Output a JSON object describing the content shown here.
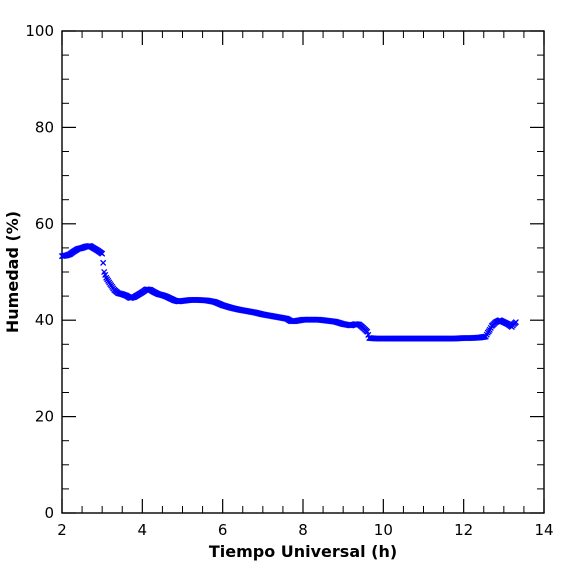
{
  "chart_data": {
    "type": "scatter",
    "title": "",
    "xlabel": "Tiempo Universal (h)",
    "ylabel": "Humedad (%)",
    "xlim": [
      2,
      14
    ],
    "ylim": [
      0,
      100
    ],
    "x_ticks": [
      2,
      4,
      6,
      8,
      10,
      12,
      14
    ],
    "y_ticks": [
      0,
      20,
      40,
      60,
      80,
      100
    ],
    "x_tick_labels": [
      "2",
      "4",
      "6",
      "8",
      "10",
      "12",
      "14"
    ],
    "y_tick_labels": [
      "0",
      "20",
      "40",
      "60",
      "80",
      "100"
    ],
    "grid": false,
    "legend": "none",
    "marker": "x",
    "color": "#0000ff",
    "series": [
      {
        "points": [
          [
            2.0,
            53.3
          ],
          [
            2.1,
            53.4
          ],
          [
            2.2,
            53.7
          ],
          [
            2.3,
            54.3
          ],
          [
            2.4,
            54.8
          ],
          [
            2.5,
            55.0
          ],
          [
            2.6,
            55.3
          ],
          [
            2.7,
            55.4
          ],
          [
            2.8,
            54.9
          ],
          [
            2.9,
            54.4
          ],
          [
            3.0,
            53.8
          ],
          [
            3.05,
            50.0
          ],
          [
            3.1,
            48.8
          ],
          [
            3.2,
            47.5
          ],
          [
            3.3,
            46.3
          ],
          [
            3.4,
            45.6
          ],
          [
            3.5,
            45.4
          ],
          [
            3.6,
            45.1
          ],
          [
            3.7,
            44.6
          ],
          [
            3.8,
            44.8
          ],
          [
            3.9,
            45.3
          ],
          [
            4.0,
            45.8
          ],
          [
            4.1,
            46.4
          ],
          [
            4.2,
            46.3
          ],
          [
            4.3,
            45.8
          ],
          [
            4.4,
            45.4
          ],
          [
            4.5,
            45.2
          ],
          [
            4.6,
            44.9
          ],
          [
            4.7,
            44.5
          ],
          [
            4.8,
            44.1
          ],
          [
            4.9,
            43.9
          ],
          [
            5.0,
            44.0
          ],
          [
            5.2,
            44.2
          ],
          [
            5.4,
            44.2
          ],
          [
            5.6,
            44.1
          ],
          [
            5.8,
            43.8
          ],
          [
            6.0,
            43.1
          ],
          [
            6.2,
            42.6
          ],
          [
            6.4,
            42.2
          ],
          [
            6.6,
            41.9
          ],
          [
            6.8,
            41.6
          ],
          [
            7.0,
            41.2
          ],
          [
            7.2,
            40.9
          ],
          [
            7.4,
            40.6
          ],
          [
            7.6,
            40.3
          ],
          [
            7.7,
            39.8
          ],
          [
            7.8,
            39.8
          ],
          [
            8.0,
            40.1
          ],
          [
            8.2,
            40.1
          ],
          [
            8.4,
            40.1
          ],
          [
            8.6,
            39.9
          ],
          [
            8.8,
            39.7
          ],
          [
            9.0,
            39.2
          ],
          [
            9.2,
            38.9
          ],
          [
            9.3,
            39.2
          ],
          [
            9.4,
            39.1
          ],
          [
            9.5,
            38.4
          ],
          [
            9.6,
            37.6
          ],
          [
            9.65,
            36.3
          ],
          [
            9.8,
            36.2
          ],
          [
            10.0,
            36.2
          ],
          [
            10.2,
            36.2
          ],
          [
            10.4,
            36.2
          ],
          [
            10.6,
            36.2
          ],
          [
            10.8,
            36.2
          ],
          [
            11.0,
            36.2
          ],
          [
            11.2,
            36.2
          ],
          [
            11.4,
            36.2
          ],
          [
            11.6,
            36.2
          ],
          [
            11.8,
            36.2
          ],
          [
            12.0,
            36.3
          ],
          [
            12.2,
            36.3
          ],
          [
            12.4,
            36.4
          ],
          [
            12.55,
            36.6
          ],
          [
            12.6,
            37.4
          ],
          [
            12.65,
            38.0
          ],
          [
            12.7,
            38.8
          ],
          [
            12.8,
            39.6
          ],
          [
            12.9,
            40.0
          ],
          [
            13.0,
            39.6
          ],
          [
            13.1,
            39.2
          ],
          [
            13.2,
            38.6
          ],
          [
            13.25,
            39.2
          ],
          [
            13.3,
            39.6
          ]
        ]
      }
    ]
  }
}
